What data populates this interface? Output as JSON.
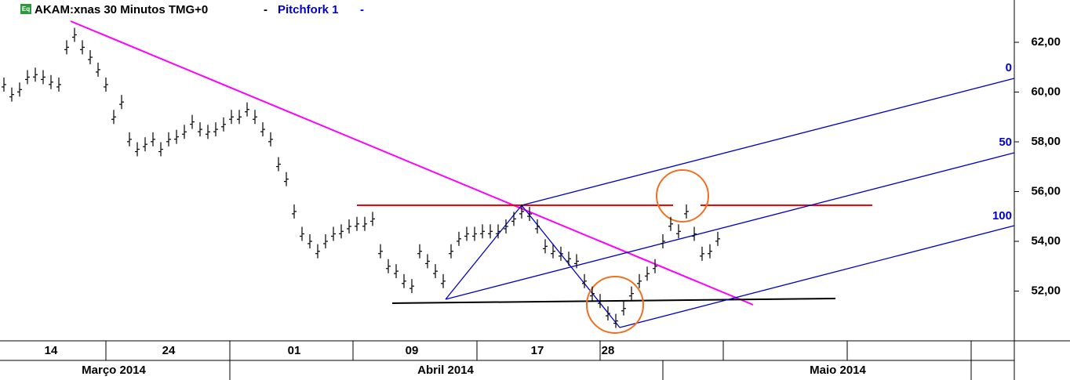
{
  "chart_data": {
    "type": "price",
    "title": "AKAM:xnas 30 Minutos TMG+0",
    "study": "Pitchfork 1",
    "icon": "Eq",
    "pitchfork_levels": [
      0,
      50,
      100
    ],
    "months": [
      "Março 2014",
      "Abril 2014",
      "Maio 2014"
    ],
    "categories": [
      null,
      null,
      null,
      null,
      null,
      null,
      "14",
      null,
      null,
      null,
      null,
      null,
      null,
      null,
      null,
      null,
      null,
      null,
      null,
      null,
      null,
      "24",
      null,
      null,
      null,
      null,
      null,
      null,
      null,
      null,
      null,
      null,
      null,
      null,
      null,
      null,
      null,
      "01",
      null,
      null,
      null,
      null,
      null,
      null,
      null,
      null,
      null,
      null,
      null,
      null,
      null,
      null,
      "09",
      null,
      null,
      null,
      null,
      null,
      null,
      null,
      null,
      null,
      null,
      null,
      null,
      null,
      null,
      null,
      "17",
      null,
      null,
      null,
      null,
      null,
      null,
      null,
      null,
      "28",
      null,
      null,
      null,
      null,
      null,
      null,
      null,
      null,
      null,
      null,
      null,
      null,
      null,
      null,
      null,
      null,
      null,
      null,
      null,
      null,
      null,
      null,
      null,
      null,
      null,
      null,
      null,
      null,
      null,
      null,
      null,
      null,
      null,
      null,
      null,
      null,
      null,
      null,
      null,
      null,
      null,
      null,
      null,
      null,
      null,
      null,
      null,
      null,
      null,
      null,
      null
    ],
    "series": [
      {
        "name": "AKAM",
        "color": "#000000",
        "values": [
          60.3,
          59.9,
          60.1,
          60.6,
          60.7,
          60.6,
          60.4,
          60.3,
          61.8,
          62.3,
          61.8,
          61.4,
          60.9,
          60.3,
          59.0,
          59.6,
          58.1,
          57.7,
          57.9,
          58.1,
          57.7,
          58.1,
          58.2,
          58.4,
          58.8,
          58.5,
          58.4,
          58.5,
          58.7,
          59.0,
          59.0,
          59.3,
          59.0,
          58.5,
          58.1,
          57.1,
          56.5,
          55.2,
          54.3,
          54.0,
          53.6,
          54.0,
          54.3,
          54.4,
          54.6,
          54.7,
          54.7,
          54.9,
          53.6,
          53.0,
          52.8,
          52.4,
          52.2,
          53.6,
          53.2,
          52.8,
          52.4,
          53.6,
          54.1,
          54.3,
          54.3,
          54.4,
          54.4,
          54.4,
          54.6,
          54.9,
          55.2,
          55.1,
          54.6,
          53.8,
          53.6,
          53.5,
          53.3,
          53.2,
          52.4,
          51.9,
          51.6,
          51.1,
          50.8,
          51.3,
          51.9,
          52.4,
          52.7,
          53.0,
          54.0,
          54.7,
          54.4,
          55.2,
          54.3,
          53.5,
          53.6,
          54.1,
          null,
          null,
          null,
          null,
          null,
          null,
          null,
          null,
          null,
          null,
          null,
          null,
          null,
          null,
          null,
          null,
          null,
          null,
          null,
          null,
          null,
          null,
          null,
          null,
          null,
          null,
          null,
          null,
          null,
          null,
          null,
          null,
          null,
          null,
          null,
          null,
          null
        ]
      }
    ],
    "ylim": [
      50.0,
      63.7
    ],
    "yticks": [
      {
        "value": 52,
        "label": "52,00"
      },
      {
        "value": 54,
        "label": "54,00"
      },
      {
        "value": 56,
        "label": "56,00"
      },
      {
        "value": 58,
        "label": "58,00"
      },
      {
        "value": 60,
        "label": "60,00"
      },
      {
        "value": 62,
        "label": "62,00"
      }
    ],
    "grid": false
  }
}
